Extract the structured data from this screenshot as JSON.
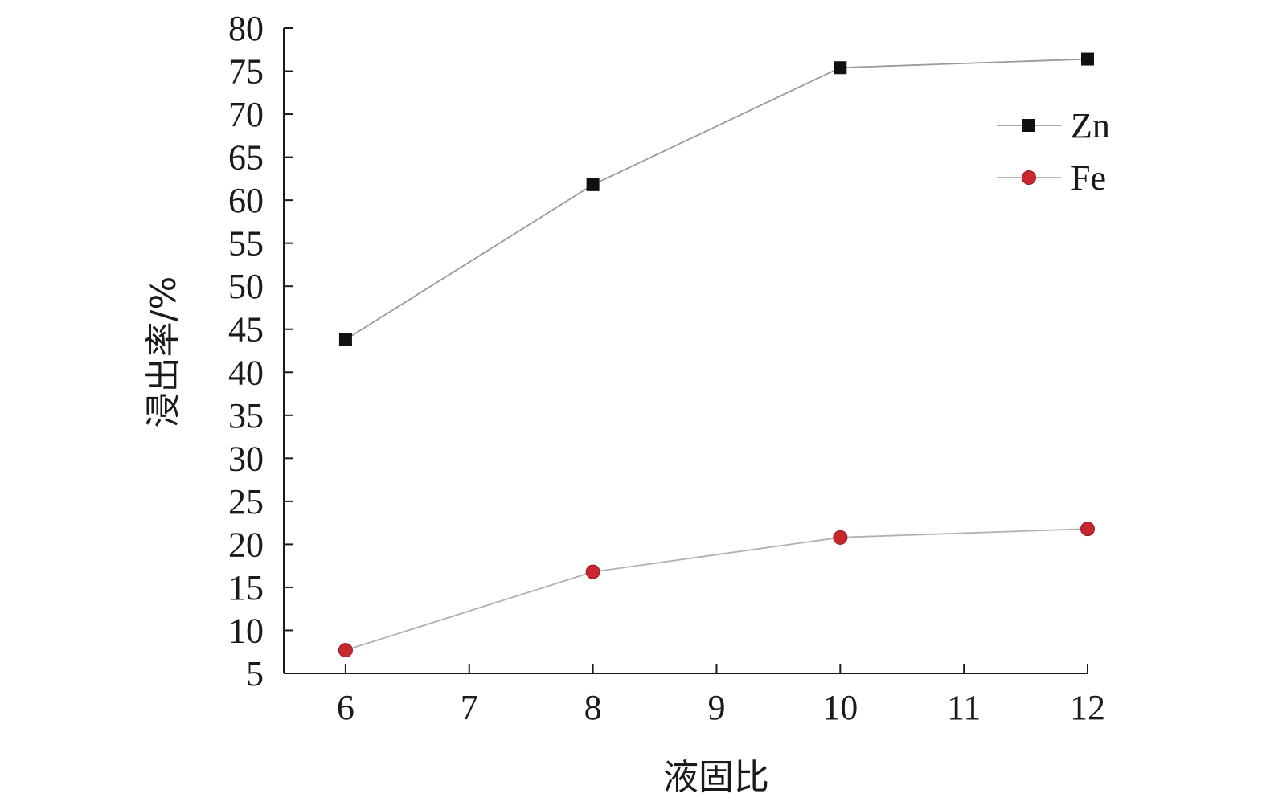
{
  "chart_data": {
    "type": "line",
    "title": "",
    "xlabel": "液固比",
    "ylabel": "浸出率/%",
    "x": [
      6,
      8,
      10,
      12
    ],
    "xlim": [
      5.5,
      12
    ],
    "ylim": [
      5,
      80
    ],
    "xticks": [
      "6",
      "7",
      "8",
      "9",
      "10",
      "11",
      "12"
    ],
    "yticks": [
      "5",
      "10",
      "15",
      "20",
      "25",
      "30",
      "35",
      "40",
      "45",
      "50",
      "55",
      "60",
      "65",
      "70",
      "75",
      "80"
    ],
    "grid": false,
    "legend_position": "top-right",
    "series": [
      {
        "name": "Zn",
        "marker": "square",
        "marker_color": "#111111",
        "line_color": "#9a9a9a",
        "values": [
          43.8,
          61.8,
          75.4,
          76.4
        ]
      },
      {
        "name": "Fe",
        "marker": "circle",
        "marker_color": "#c8282d",
        "line_color": "#b4aeb2",
        "values": [
          7.7,
          16.8,
          20.8,
          21.8
        ]
      }
    ]
  }
}
